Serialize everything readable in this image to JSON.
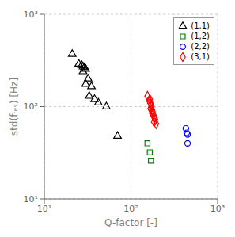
{
  "chart_data": {
    "type": "scatter",
    "xlabel": "Q-factor [-]",
    "ylabel": "std(fᵣₑₛ) [Hz]",
    "log": true,
    "xlim": [
      10,
      1000
    ],
    "ylim": [
      10,
      1000
    ],
    "xticks": [
      {
        "value": 10,
        "label": "10¹"
      },
      {
        "value": 100,
        "label": "10²"
      },
      {
        "value": 1000,
        "label": "10³"
      }
    ],
    "yticks": [
      {
        "value": 10,
        "label": "10¹"
      },
      {
        "value": 100,
        "label": "10²"
      },
      {
        "value": 1000,
        "label": "10³"
      }
    ],
    "grid": true,
    "legend": "upper right",
    "series": [
      {
        "name": "(1,1)",
        "color": "black",
        "marker": "triangle",
        "x": [
          21,
          25,
          27,
          28,
          29,
          30,
          28,
          32,
          30,
          35,
          33,
          38,
          42,
          52,
          70
        ],
        "y": [
          370,
          290,
          280,
          270,
          265,
          255,
          240,
          200,
          175,
          165,
          130,
          120,
          110,
          100,
          48
        ]
      },
      {
        "name": "(1,2)",
        "color": "green",
        "marker": "square",
        "x": [
          155,
          165,
          170
        ],
        "y": [
          40,
          32,
          26
        ]
      },
      {
        "name": "(2,2)",
        "color": "blue",
        "marker": "circle",
        "x": [
          430,
          440,
          450,
          450
        ],
        "y": [
          58,
          52,
          50,
          40
        ]
      },
      {
        "name": "(3,1)",
        "color": "red",
        "marker": "diamond",
        "x": [
          155,
          165,
          163,
          167,
          170,
          172,
          168,
          175,
          178,
          175,
          180,
          185,
          188,
          190,
          185,
          195
        ],
        "y": [
          130,
          120,
          115,
          110,
          105,
          100,
          95,
          92,
          88,
          85,
          82,
          78,
          75,
          72,
          68,
          65
        ]
      }
    ]
  }
}
